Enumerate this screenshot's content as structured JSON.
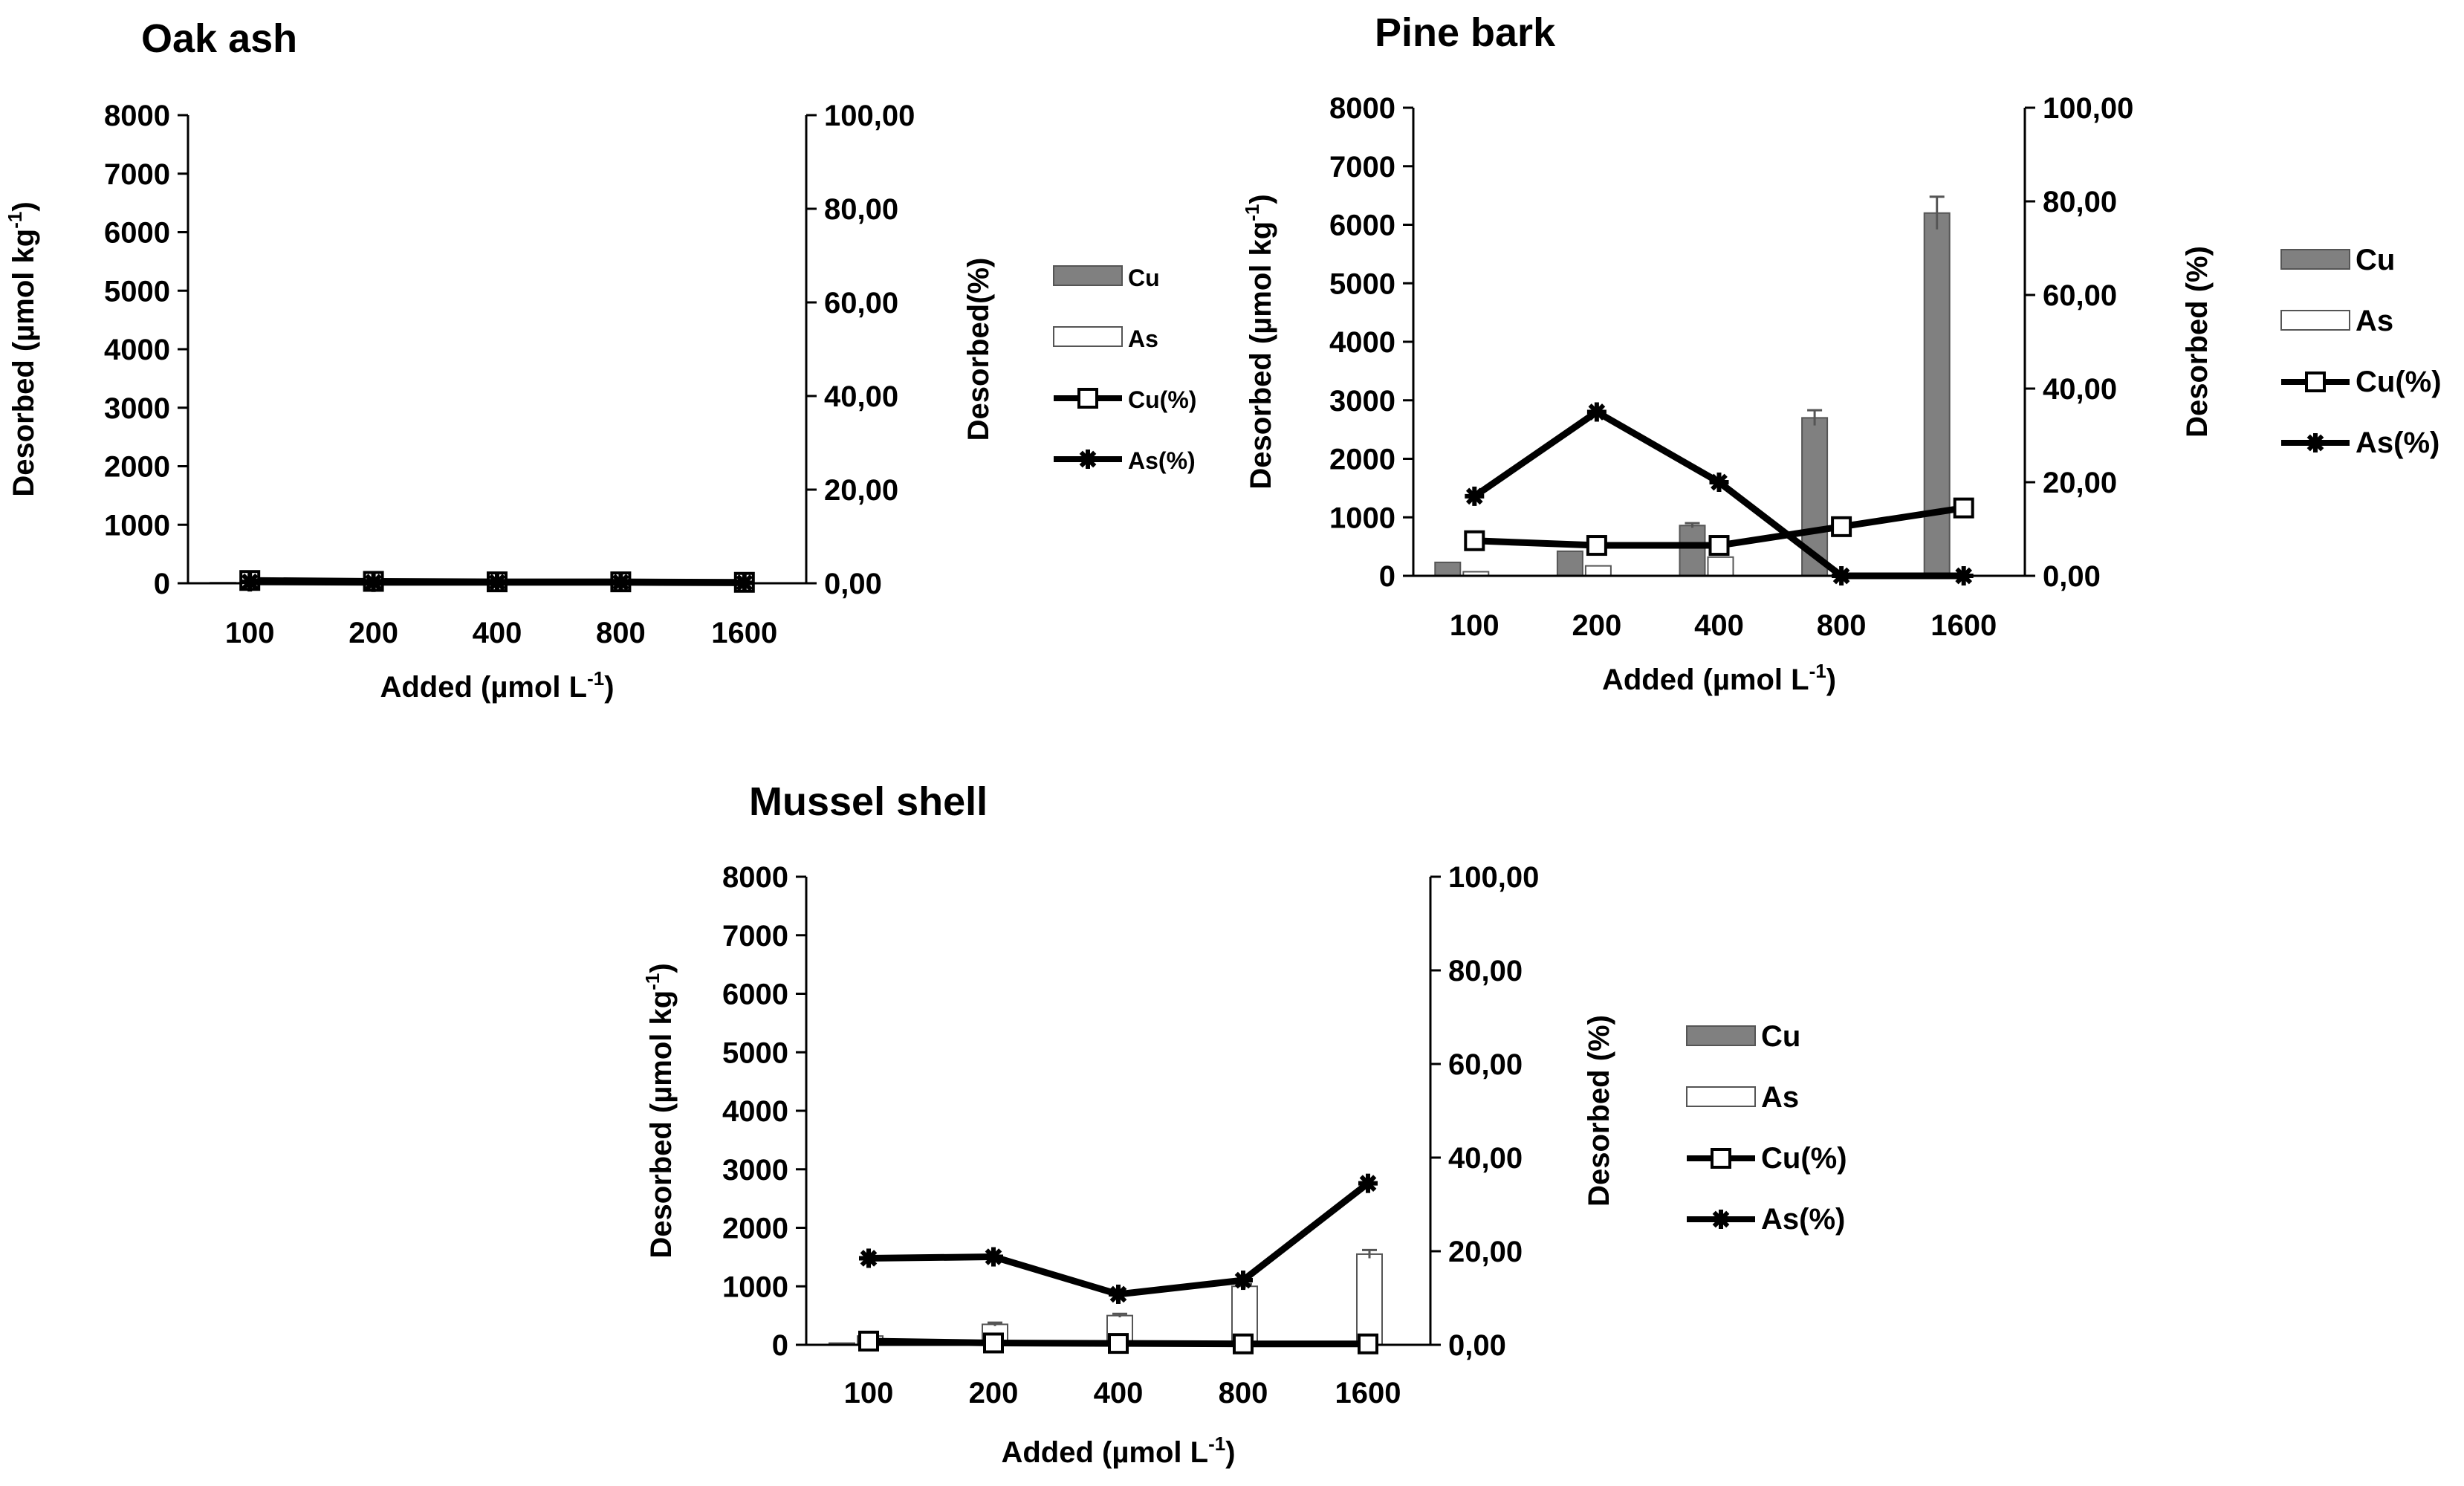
{
  "chart_data": [
    {
      "type": "bar",
      "title": "Oak ash",
      "categories": [
        "100",
        "200",
        "400",
        "800",
        "1600"
      ],
      "xlabel": "Added (µmol L",
      "xlabel_sup": "-1",
      "xlabel_end": ")",
      "ylabel": "Desorbed (µmol kg",
      "ylabel_sup": "-1",
      "ylabel_end": ")",
      "y2label": "Desorbed(%)",
      "ylim": [
        0,
        8000
      ],
      "y2lim": [
        0,
        100
      ],
      "yticks": [
        "0",
        "1000",
        "2000",
        "3000",
        "4000",
        "5000",
        "6000",
        "7000",
        "8000"
      ],
      "y2ticks": [
        "0,00",
        "20,00",
        "40,00",
        "60,00",
        "80,00",
        "100,00"
      ],
      "bar_series": [
        {
          "name": "Cu",
          "values": [
            10,
            8,
            8,
            8,
            6
          ],
          "errors": [
            0,
            0,
            0,
            0,
            0
          ],
          "color": "#808080"
        },
        {
          "name": "As",
          "values": [
            8,
            6,
            6,
            6,
            5
          ],
          "errors": [
            0,
            0,
            0,
            0,
            0
          ],
          "color": "#ffffff"
        }
      ],
      "line_series": [
        {
          "name": "Cu(%)",
          "values": [
            0.6,
            0.4,
            0.3,
            0.3,
            0.2
          ],
          "marker": "square"
        },
        {
          "name": "As(%)",
          "values": [
            0.3,
            0.2,
            0.2,
            0.2,
            0.1
          ],
          "marker": "star"
        }
      ],
      "legend": [
        "Cu",
        "As",
        "Cu(%)",
        "As(%)"
      ],
      "legend_position": "right"
    },
    {
      "type": "bar",
      "title": "Pine bark",
      "categories": [
        "100",
        "200",
        "400",
        "800",
        "1600"
      ],
      "xlabel": "Added (µmol L",
      "xlabel_sup": "-1",
      "xlabel_end": ")",
      "ylabel": "Desorbed (µmol kg",
      "ylabel_sup": "-1",
      "ylabel_end": ")",
      "y2label": "Desorbed (%)",
      "ylim": [
        0,
        8000
      ],
      "y2lim": [
        0,
        100
      ],
      "yticks": [
        "0",
        "1000",
        "2000",
        "3000",
        "4000",
        "5000",
        "6000",
        "7000",
        "8000"
      ],
      "y2ticks": [
        "0,00",
        "20,00",
        "40,00",
        "60,00",
        "80,00",
        "100,00"
      ],
      "bar_series": [
        {
          "name": "Cu",
          "values": [
            230,
            420,
            860,
            2700,
            6200
          ],
          "errors": [
            0,
            0,
            40,
            130,
            280
          ],
          "color": "#808080"
        },
        {
          "name": "As",
          "values": [
            70,
            170,
            320,
            0,
            0
          ],
          "errors": [
            0,
            0,
            0,
            0,
            0
          ],
          "color": "#ffffff"
        }
      ],
      "line_series": [
        {
          "name": "Cu(%)",
          "values": [
            7.5,
            6.5,
            6.5,
            10.5,
            14.5
          ],
          "marker": "square"
        },
        {
          "name": "As(%)",
          "values": [
            17,
            35,
            20,
            0,
            0
          ],
          "marker": "star"
        }
      ],
      "legend": [
        "Cu",
        "As",
        "Cu(%)",
        "As(%)"
      ],
      "legend_position": "right"
    },
    {
      "type": "bar",
      "title": "Mussel shell",
      "categories": [
        "100",
        "200",
        "400",
        "800",
        "1600"
      ],
      "xlabel": "Added (µmol L",
      "xlabel_sup": "-1",
      "xlabel_end": ")",
      "ylabel": "Desorbed (µmol kg",
      "ylabel_sup": "-1",
      "ylabel_end": ")",
      "y2label": "Desorbed (%)",
      "ylim": [
        0,
        8000
      ],
      "y2lim": [
        0,
        100
      ],
      "yticks": [
        "0",
        "1000",
        "2000",
        "3000",
        "4000",
        "5000",
        "6000",
        "7000",
        "8000"
      ],
      "y2ticks": [
        "0,00",
        "20,00",
        "40,00",
        "60,00",
        "80,00",
        "100,00"
      ],
      "bar_series": [
        {
          "name": "Cu",
          "values": [
            30,
            15,
            12,
            10,
            10
          ],
          "errors": [
            0,
            0,
            0,
            0,
            0
          ],
          "color": "#808080"
        },
        {
          "name": "As",
          "values": [
            150,
            350,
            500,
            1000,
            1550
          ],
          "errors": [
            0,
            30,
            30,
            40,
            70
          ],
          "color": "#ffffff"
        }
      ],
      "line_series": [
        {
          "name": "Cu(%)",
          "values": [
            0.8,
            0.4,
            0.3,
            0.2,
            0.2
          ],
          "marker": "square"
        },
        {
          "name": "As(%)",
          "values": [
            18.5,
            18.8,
            10.8,
            13.8,
            34.5
          ],
          "marker": "star"
        }
      ],
      "legend": [
        "Cu",
        "As",
        "Cu(%)",
        "As(%)"
      ],
      "legend_position": "right"
    }
  ]
}
